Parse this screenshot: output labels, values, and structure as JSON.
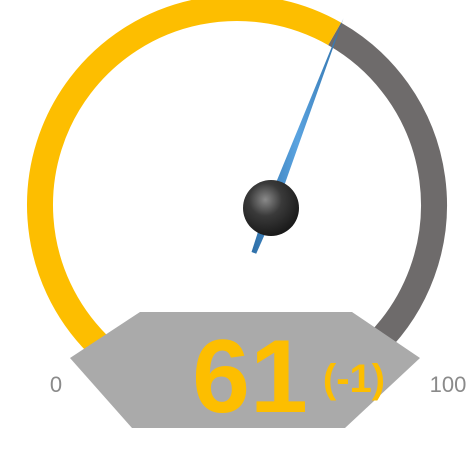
{
  "chart_data": {
    "type": "gauge",
    "value": 61,
    "value_label": "61",
    "delta_label": "(-1)",
    "min": 0,
    "max": 100,
    "min_label": "0",
    "max_label": "100"
  },
  "colors": {
    "filled_arc": "#FDBE00",
    "remaining_arc": "#6E6B6B",
    "readout_panel": "#AAAAAA",
    "needle": "#3D87C6",
    "needle_dark": "#2E6FA8",
    "hub": "#3A3A3A",
    "value_text": "#FDBE00",
    "tick_text": "#8A8A8A"
  }
}
